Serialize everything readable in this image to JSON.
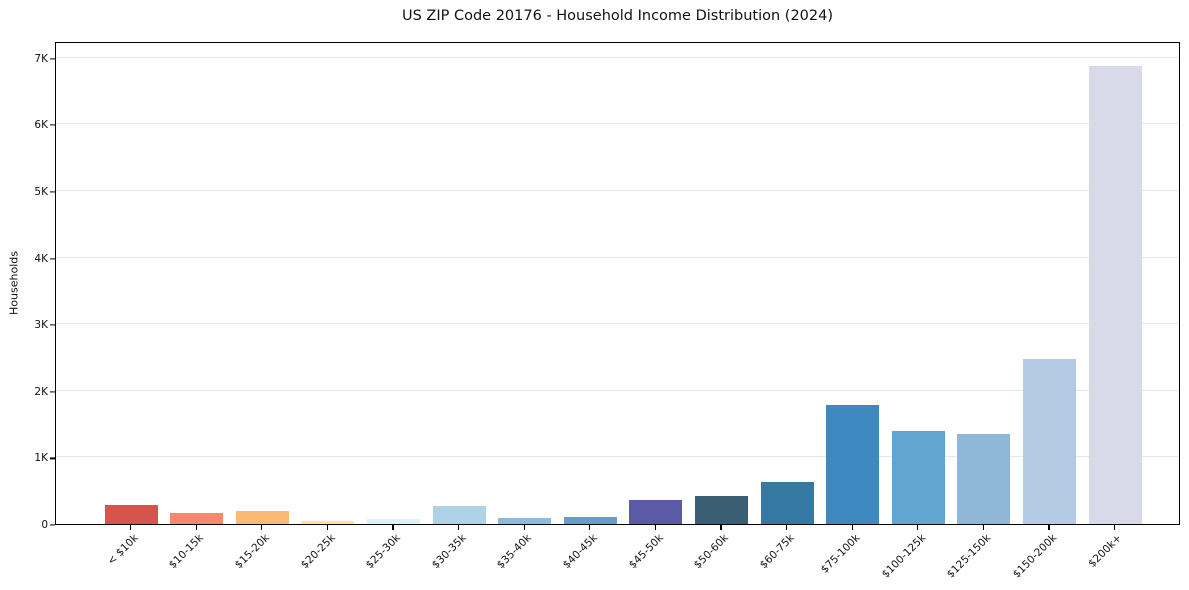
{
  "title": "US ZIP Code 20176 - Household Income Distribution (2024)",
  "chart_data": {
    "type": "bar",
    "title": "US ZIP Code 20176 - Household Income Distribution (2024)",
    "xlabel": "",
    "ylabel": "Households",
    "categories": [
      "< $10k",
      "$10-15k",
      "$15-20k",
      "$20-25k",
      "$25-30k",
      "$30-35k",
      "$35-40k",
      "$40-45k",
      "$45-50k",
      "$50-60k",
      "$60-75k",
      "$75-100k",
      "$100-125k",
      "$125-150k",
      "$150-200k",
      "$200k+"
    ],
    "values": [
      290,
      170,
      195,
      50,
      75,
      265,
      95,
      110,
      365,
      420,
      630,
      1780,
      1400,
      1350,
      2480,
      6870
    ],
    "bar_colors": [
      "#d5544d",
      "#f5896d",
      "#f9bb72",
      "#fce3a2",
      "#e1f0f5",
      "#aed2e6",
      "#8dbbdc",
      "#6b9bce",
      "#5a5aa6",
      "#3a5f74",
      "#3579a2",
      "#3d89c0",
      "#61a6ce",
      "#90b7d8",
      "#b4cbe3",
      "#d8dae9"
    ],
    "ytick_labels": [
      "0",
      "1K",
      "2K",
      "3K",
      "4K",
      "5K",
      "6K",
      "7K"
    ],
    "ytick_values": [
      0,
      1000,
      2000,
      3000,
      4000,
      5000,
      6000,
      7000
    ],
    "ylim": [
      0,
      7250
    ],
    "grid": "horizontal",
    "grid_color": "#e7e7f0",
    "axis_color": "#000000",
    "background": "#ffffff",
    "legend": "none"
  }
}
